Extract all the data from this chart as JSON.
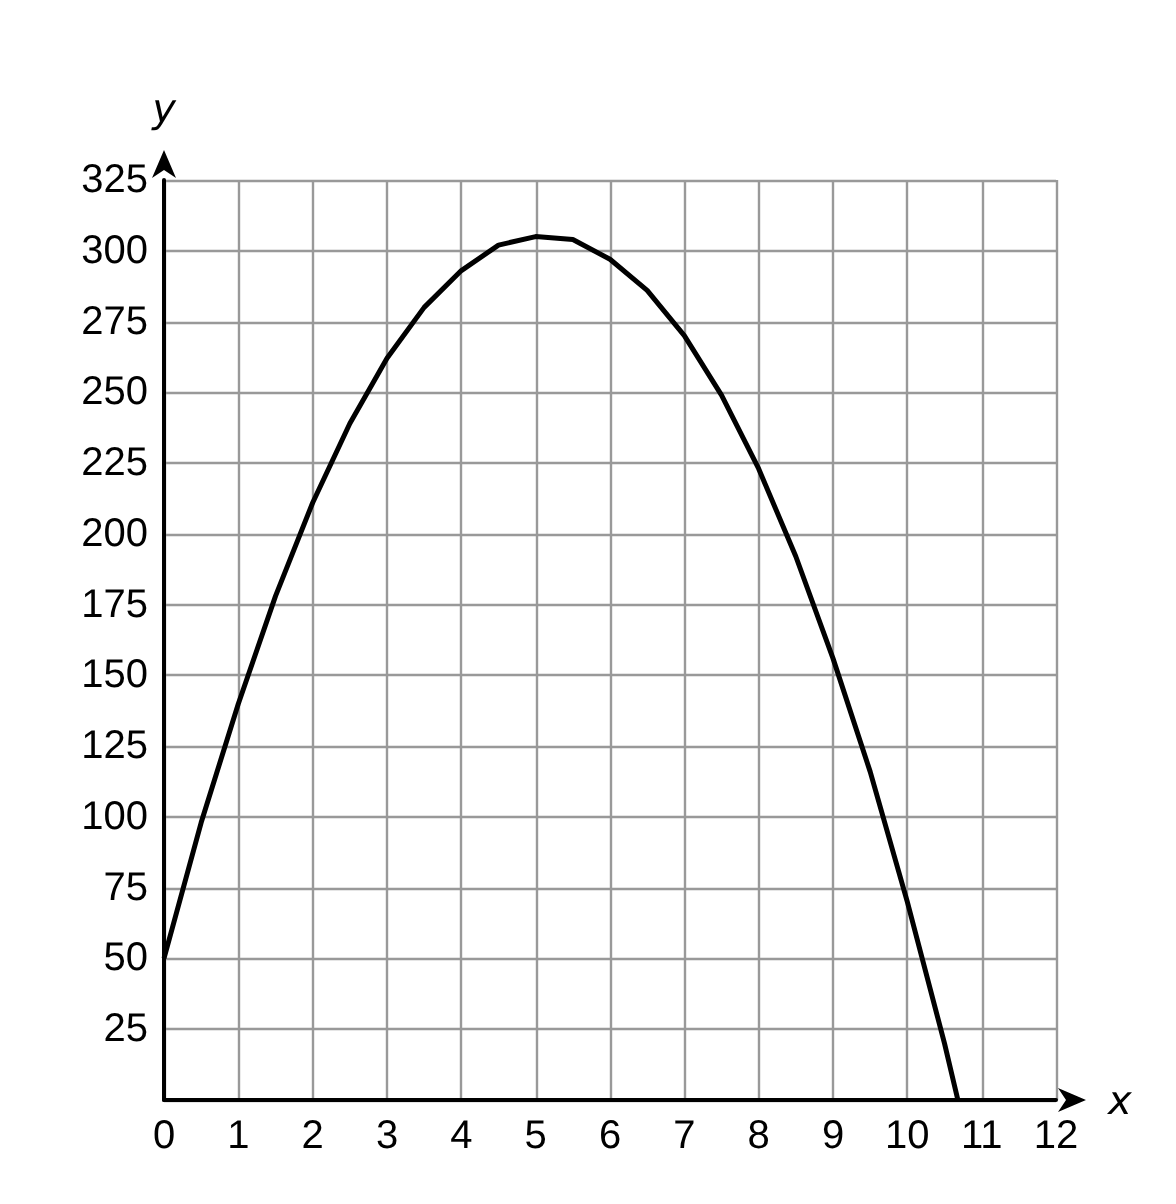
{
  "chart_data": {
    "type": "line",
    "xlabel": "x",
    "ylabel": "y",
    "x": [
      0,
      0.5,
      1,
      1.5,
      2,
      2.5,
      3,
      3.5,
      4,
      4.5,
      5,
      5.5,
      6,
      6.5,
      7,
      7.5,
      8,
      8.5,
      9,
      9.5,
      10,
      10.5,
      10.68
    ],
    "series": [
      {
        "color": "#000000",
        "values": [
          50,
          98,
          140,
          178,
          211,
          239,
          262,
          280,
          293,
          302,
          305,
          304,
          297,
          286,
          270,
          249,
          223,
          192,
          156,
          116,
          70,
          20,
          0
        ]
      }
    ],
    "xlim": [
      0,
      12
    ],
    "ylim": [
      0,
      325
    ],
    "xticks": [
      0,
      1,
      2,
      3,
      4,
      5,
      6,
      7,
      8,
      9,
      10,
      11,
      12
    ],
    "yticks": [
      {
        "value": 0,
        "label": null
      },
      25,
      50,
      75,
      100,
      125,
      150,
      175,
      200,
      225,
      250,
      275,
      300,
      325
    ],
    "grid": true,
    "marker": "none",
    "line_style": "solid"
  }
}
